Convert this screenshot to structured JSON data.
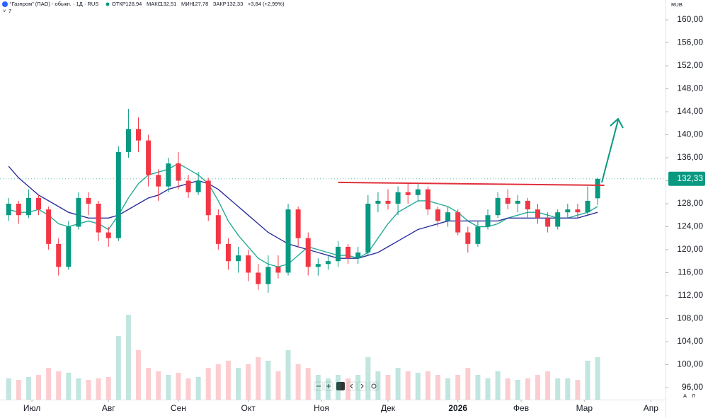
{
  "header": {
    "title": "“Газпром” (ПАО) - обыкн. · 1Д · RUS",
    "ohlc": [
      {
        "label": "ОТКР",
        "value": "128,94"
      },
      {
        "label": "МАКС",
        "value": "132,51"
      },
      {
        "label": "МИН",
        "value": "127,78"
      },
      {
        "label": "ЗАКР",
        "value": "132,33"
      }
    ],
    "change": "+3,84 (+2,99%)",
    "indicators": "7",
    "currency": "RUB",
    "corner_labels": [
      "А",
      "Л"
    ]
  },
  "chart_data": {
    "type": "candlestick",
    "x": [
      -7,
      -4,
      -1,
      2,
      5,
      8,
      11,
      14,
      17,
      20,
      23,
      26,
      29,
      32,
      35,
      38,
      41,
      44,
      47,
      50,
      53,
      56,
      59,
      62,
      65,
      68,
      71,
      74,
      77,
      80,
      83,
      86,
      89,
      92,
      95,
      98,
      101,
      104,
      107,
      110,
      113,
      116,
      119,
      122,
      125,
      128,
      131,
      134,
      137,
      140,
      143,
      146,
      149,
      152,
      155,
      158,
      161,
      164,
      167,
      170
    ],
    "open": [
      126,
      128,
      126,
      129,
      127,
      121,
      117,
      124,
      129,
      128,
      123,
      122,
      137,
      141,
      139,
      133,
      131,
      135,
      132,
      130,
      132,
      126,
      121,
      118,
      119,
      116,
      114,
      117,
      116,
      127,
      122,
      117,
      117.5,
      118,
      120.5,
      118.5,
      119.5,
      128,
      128.5,
      128,
      130,
      129.5,
      130.5,
      127,
      125,
      126.5,
      123,
      121,
      124,
      126,
      129,
      128,
      128.5,
      127,
      125.5,
      124,
      126.5,
      127,
      126.5,
      128.94
    ],
    "high": [
      129,
      128.5,
      130.5,
      129.5,
      127.5,
      122,
      125,
      130,
      130,
      128.5,
      124,
      138,
      144.5,
      143,
      140,
      134,
      136,
      137,
      133,
      133.5,
      132.5,
      127,
      122,
      120.5,
      120,
      117.5,
      119,
      119,
      128,
      127.5,
      123,
      118.5,
      119,
      121.5,
      121,
      120.5,
      129.5,
      130,
      130.5,
      131,
      131.5,
      131.5,
      131,
      127.5,
      127.5,
      127,
      124,
      125,
      127,
      130,
      130.5,
      129.5,
      129,
      128,
      126.5,
      127,
      128,
      128,
      131,
      132.51
    ],
    "low": [
      125,
      124.5,
      125.5,
      126,
      120,
      115.5,
      116.5,
      123.5,
      126,
      121.5,
      120.5,
      121.5,
      136,
      137,
      131,
      128.5,
      130,
      130.5,
      129,
      129.5,
      125,
      120,
      116.5,
      116,
      114.5,
      113,
      112.5,
      115,
      115.5,
      120.5,
      115.5,
      115.5,
      116.5,
      117,
      117.5,
      117.5,
      119,
      126.5,
      127,
      126,
      128,
      128.5,
      126,
      124,
      124,
      122.5,
      119.5,
      120.5,
      123.5,
      125.5,
      127,
      126.5,
      125.5,
      124.5,
      123,
      123.5,
      125.5,
      125.5,
      126,
      127.78
    ],
    "close": [
      128,
      126,
      129,
      127,
      121,
      117,
      124,
      129,
      128,
      123,
      122,
      137,
      141,
      139,
      133,
      131,
      135,
      132,
      130,
      132,
      126,
      121,
      118,
      119,
      116,
      114,
      117,
      116,
      127,
      122,
      117,
      117.5,
      118,
      120.5,
      118.5,
      119.5,
      128,
      128.5,
      128,
      130,
      129.5,
      130.5,
      127,
      125,
      126.5,
      123,
      121,
      124,
      126,
      129,
      128,
      128.5,
      127,
      125.5,
      124,
      126.5,
      127,
      126.5,
      128.5,
      132.33
    ],
    "up_color": "#089981",
    "down_color": "#f23645",
    "lines": [
      {
        "color": "#22ab94",
        "values": [
          127,
          126.5,
          126.5,
          127,
          126,
          124.5,
          124,
          124.5,
          125,
          124.5,
          123.5,
          126,
          129,
          131.5,
          133,
          133.5,
          134,
          135,
          134,
          133,
          131.5,
          128.5,
          125,
          122.5,
          120.5,
          118.5,
          117.5,
          117,
          117.5,
          119,
          120.5,
          120,
          119.5,
          119,
          119,
          118.5,
          119.5,
          122,
          124.5,
          126.5,
          127.5,
          128.5,
          128.5,
          128,
          127.5,
          126.5,
          125,
          124,
          124,
          124.5,
          125.5,
          126,
          126.5,
          126.5,
          126,
          125.5,
          125.5,
          126,
          126.5,
          127.5
        ]
      },
      {
        "color": "#2a2e9b",
        "values": [
          134.5,
          132.5,
          131,
          129.5,
          128.5,
          127.5,
          126.5,
          126,
          125.5,
          125.5,
          125.5,
          126,
          127,
          128,
          129,
          129.5,
          130.5,
          131,
          131.5,
          132,
          131.5,
          130.5,
          129,
          127.5,
          126,
          124.5,
          123,
          122,
          121,
          120.5,
          120,
          119.5,
          119,
          118.5,
          118.5,
          118.5,
          119,
          119.5,
          120.5,
          121.5,
          122.5,
          123.5,
          124,
          124.5,
          125,
          125,
          125,
          125,
          125,
          125,
          125.5,
          125.5,
          125.5,
          125.5,
          125.5,
          125.5,
          125.5,
          125.5,
          126,
          126.5
        ]
      }
    ],
    "volume": [
      30,
      28,
      32,
      35,
      45,
      40,
      38,
      30,
      28,
      30,
      32,
      90,
      120,
      70,
      45,
      40,
      35,
      38,
      30,
      32,
      45,
      50,
      55,
      45,
      50,
      60,
      55,
      40,
      70,
      50,
      45,
      35,
      30,
      35,
      30,
      35,
      60,
      40,
      35,
      45,
      40,
      38,
      40,
      35,
      30,
      35,
      45,
      35,
      30,
      40,
      30,
      28,
      30,
      35,
      40,
      30,
      30,
      28,
      55,
      60
    ],
    "volume_ylim": [
      0,
      150
    ],
    "resistance": {
      "x": [
        92,
        172
      ],
      "y": [
        131.7,
        131.2
      ],
      "color": "#e0303a"
    },
    "last_price": {
      "value": 132.33,
      "label": "132,33"
    },
    "xlim": [
      -9.6,
      190.4
    ],
    "ylim": [
      93.9,
      163.45
    ],
    "grid": false,
    "xticks": [
      {
        "value": 0,
        "label": "Июл"
      },
      {
        "value": 23,
        "label": "Авг"
      },
      {
        "value": 44,
        "label": "Сен"
      },
      {
        "value": 65,
        "label": "Окт"
      },
      {
        "value": 87,
        "label": "Ноя"
      },
      {
        "value": 107,
        "label": "Дек"
      },
      {
        "value": 128,
        "label": "2026"
      },
      {
        "value": 147,
        "label": "Фев"
      },
      {
        "value": 166,
        "label": "Мар"
      },
      {
        "value": 186,
        "label": "Апр"
      }
    ],
    "yticks": [
      {
        "value": 96,
        "label": "96,00"
      },
      {
        "value": 100,
        "label": "100,00"
      },
      {
        "value": 104,
        "label": "104,00"
      },
      {
        "value": 108,
        "label": "108,00"
      },
      {
        "value": 112,
        "label": "112,00"
      },
      {
        "value": 116,
        "label": "116,00"
      },
      {
        "value": 120,
        "label": "120,00"
      },
      {
        "value": 124,
        "label": "124,00"
      },
      {
        "value": 128,
        "label": "128,00"
      },
      {
        "value": 132,
        "label": "132,00"
      },
      {
        "value": 136,
        "label": "136,00"
      },
      {
        "value": 140,
        "label": "140,00"
      },
      {
        "value": 144,
        "label": "144,00"
      },
      {
        "value": 148,
        "label": "148,00"
      },
      {
        "value": 152,
        "label": "152,00"
      },
      {
        "value": 156,
        "label": "156,00"
      },
      {
        "value": 160,
        "label": "160,00"
      }
    ]
  }
}
